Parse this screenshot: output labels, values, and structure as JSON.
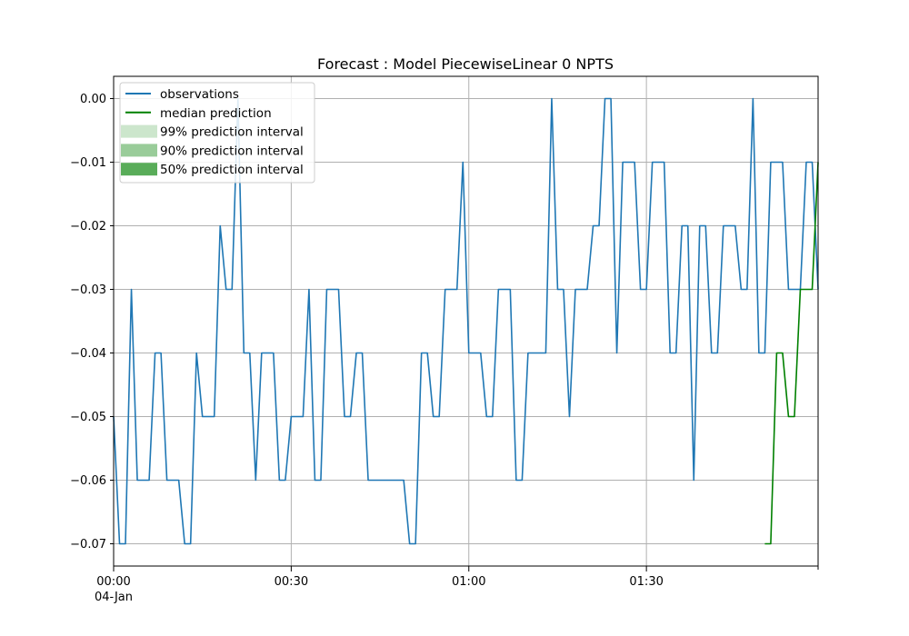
{
  "chart_data": {
    "type": "line",
    "title": "Forecast : Model PiecewiseLinear 0 NPTS",
    "xlabel": "",
    "ylabel": "",
    "x_unit": "minutes",
    "xlim": [
      0,
      119
    ],
    "ylim": [
      -0.0735,
      0.0035
    ],
    "grid": true,
    "legend_position": "top-left",
    "x_ticks": [
      {
        "value": 0,
        "label": "00:00",
        "sublabel": "04-Jan"
      },
      {
        "value": 30,
        "label": "00:30",
        "sublabel": ""
      },
      {
        "value": 60,
        "label": "01:00",
        "sublabel": ""
      },
      {
        "value": 90,
        "label": "01:30",
        "sublabel": ""
      }
    ],
    "x_minor_ticks": [
      119
    ],
    "y_ticks": [
      {
        "value": 0.0,
        "label": "0.00"
      },
      {
        "value": -0.01,
        "label": "−0.01"
      },
      {
        "value": -0.02,
        "label": "−0.02"
      },
      {
        "value": -0.03,
        "label": "−0.03"
      },
      {
        "value": -0.04,
        "label": "−0.04"
      },
      {
        "value": -0.05,
        "label": "−0.05"
      },
      {
        "value": -0.06,
        "label": "−0.06"
      },
      {
        "value": -0.07,
        "label": "−0.07"
      }
    ],
    "series": [
      {
        "name": "observations",
        "color": "#1f77b4",
        "x_start": 0,
        "x_step": 1,
        "values": [
          -0.05,
          -0.07,
          -0.07,
          -0.03,
          -0.06,
          -0.06,
          -0.06,
          -0.04,
          -0.04,
          -0.06,
          -0.06,
          -0.06,
          -0.07,
          -0.07,
          -0.04,
          -0.05,
          -0.05,
          -0.05,
          -0.02,
          -0.03,
          -0.03,
          0.0,
          -0.04,
          -0.04,
          -0.06,
          -0.04,
          -0.04,
          -0.04,
          -0.06,
          -0.06,
          -0.05,
          -0.05,
          -0.05,
          -0.03,
          -0.06,
          -0.06,
          -0.03,
          -0.03,
          -0.03,
          -0.05,
          -0.05,
          -0.04,
          -0.04,
          -0.06,
          -0.06,
          -0.06,
          -0.06,
          -0.06,
          -0.06,
          -0.06,
          -0.07,
          -0.07,
          -0.04,
          -0.04,
          -0.05,
          -0.05,
          -0.03,
          -0.03,
          -0.03,
          -0.01,
          -0.04,
          -0.04,
          -0.04,
          -0.05,
          -0.05,
          -0.03,
          -0.03,
          -0.03,
          -0.06,
          -0.06,
          -0.04,
          -0.04,
          -0.04,
          -0.04,
          0.0,
          -0.03,
          -0.03,
          -0.05,
          -0.03,
          -0.03,
          -0.03,
          -0.02,
          -0.02,
          0.0,
          0.0,
          -0.04,
          -0.01,
          -0.01,
          -0.01,
          -0.03,
          -0.03,
          -0.01,
          -0.01,
          -0.01,
          -0.04,
          -0.04,
          -0.02,
          -0.02,
          -0.06,
          -0.02,
          -0.02,
          -0.04,
          -0.04,
          -0.02,
          -0.02,
          -0.02,
          -0.03,
          -0.03,
          0.0,
          -0.04,
          -0.04,
          -0.01,
          -0.01,
          -0.01,
          -0.03,
          -0.03,
          -0.03,
          -0.01,
          -0.01,
          -0.03
        ]
      },
      {
        "name": "median prediction",
        "color": "#008000",
        "x_start": 110,
        "x_step": 1,
        "values": [
          -0.07,
          -0.07,
          -0.04,
          -0.04,
          -0.05,
          -0.05,
          -0.03,
          -0.03,
          -0.03,
          -0.01
        ]
      }
    ],
    "intervals": [
      {
        "name": "99% prediction interval",
        "color": "#008000",
        "opacity": 0.2
      },
      {
        "name": "90% prediction interval",
        "color": "#008000",
        "opacity": 0.4
      },
      {
        "name": "50% prediction interval",
        "color": "#008000",
        "opacity": 0.65
      }
    ]
  }
}
